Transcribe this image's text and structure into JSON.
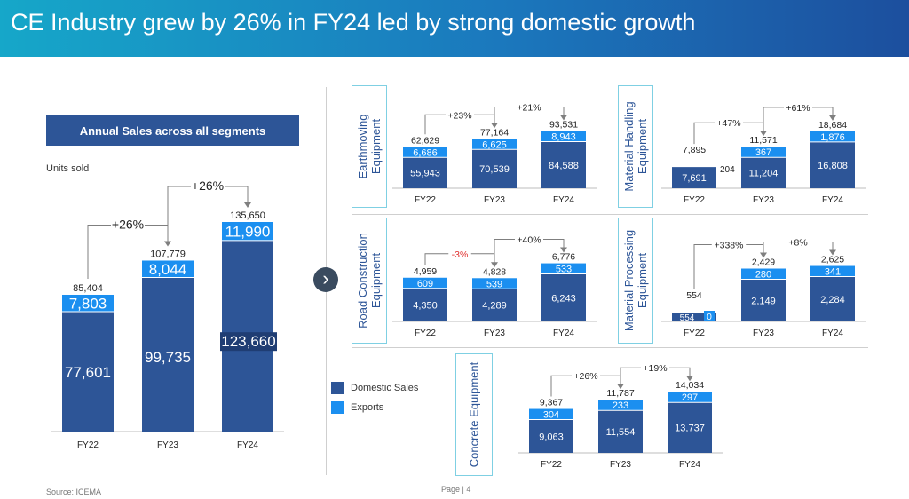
{
  "header": {
    "title": "CE Industry grew by 26% in FY24 led by strong domestic growth"
  },
  "left_panel": {
    "box_title": "Annual  Sales across all segments",
    "units": "Units sold"
  },
  "legend": {
    "domestic": "Domestic Sales",
    "exports": "Exports"
  },
  "footer": {
    "source": "Source: ICEMA",
    "page": "Page | 4"
  },
  "colors": {
    "domestic": "#2d5597",
    "exports": "#1b8ff0",
    "header_start": "#16a7c9",
    "header_end": "#1c4f9e",
    "negative": "#e0312f"
  },
  "segment_labels": {
    "earthmoving": "Earthmoving\nEquipment",
    "material_handling": "Material Handling\nEquipment",
    "road_construction": "Road Construction\nEquipment",
    "material_processing": "Material Processing\nEquipment",
    "concrete": "Concrete Equipment"
  },
  "chart_data": [
    {
      "id": "total",
      "type": "bar",
      "stacked": true,
      "title": "Annual  Sales across all segments",
      "ylabel": "Units sold",
      "categories": [
        "FY22",
        "FY23",
        "FY24"
      ],
      "series": [
        {
          "name": "Domestic Sales",
          "values": [
            77601,
            99735,
            123660
          ]
        },
        {
          "name": "Exports",
          "values": [
            7803,
            8044,
            11990
          ]
        }
      ],
      "totals": [
        "85,404",
        "107,779",
        "135,650"
      ],
      "growth": [
        "+26%",
        "+26%"
      ]
    },
    {
      "id": "earthmoving",
      "type": "bar",
      "stacked": true,
      "title": "Earthmoving Equipment",
      "categories": [
        "FY22",
        "FY23",
        "FY24"
      ],
      "series": [
        {
          "name": "Domestic Sales",
          "values": [
            55943,
            70539,
            84588
          ]
        },
        {
          "name": "Exports",
          "values": [
            6686,
            6625,
            8943
          ]
        }
      ],
      "totals": [
        "62,629",
        "77,164",
        "93,531"
      ],
      "growth": [
        "+23%",
        "+21%"
      ]
    },
    {
      "id": "material_handling",
      "type": "bar",
      "stacked": true,
      "title": "Material Handling Equipment",
      "categories": [
        "FY22",
        "FY23",
        "FY24"
      ],
      "series": [
        {
          "name": "Domestic Sales",
          "values": [
            7691,
            11204,
            16808
          ]
        },
        {
          "name": "Exports",
          "values": [
            204,
            367,
            1876
          ]
        }
      ],
      "totals": [
        "7,895",
        "11,571",
        "18,684"
      ],
      "growth": [
        "+47%",
        "+61%"
      ]
    },
    {
      "id": "road_construction",
      "type": "bar",
      "stacked": true,
      "title": "Road Construction Equipment",
      "categories": [
        "FY22",
        "FY23",
        "FY24"
      ],
      "series": [
        {
          "name": "Domestic Sales",
          "values": [
            4350,
            4289,
            6243
          ]
        },
        {
          "name": "Exports",
          "values": [
            609,
            539,
            533
          ]
        }
      ],
      "totals": [
        "4,959",
        "4,828",
        "6,776"
      ],
      "growth": [
        "-3%",
        "+40%"
      ]
    },
    {
      "id": "material_processing",
      "type": "bar",
      "stacked": true,
      "title": "Material Processing Equipment",
      "categories": [
        "FY22",
        "FY23",
        "FY24"
      ],
      "series": [
        {
          "name": "Domestic Sales",
          "values": [
            554,
            2149,
            2284
          ]
        },
        {
          "name": "Exports",
          "values": [
            0,
            280,
            341
          ]
        }
      ],
      "totals": [
        "554",
        "2,429",
        "2,625"
      ],
      "growth": [
        "+338%",
        "+8%"
      ]
    },
    {
      "id": "concrete",
      "type": "bar",
      "stacked": true,
      "title": "Concrete Equipment",
      "categories": [
        "FY22",
        "FY23",
        "FY24"
      ],
      "series": [
        {
          "name": "Domestic Sales",
          "values": [
            9063,
            11554,
            13737
          ]
        },
        {
          "name": "Exports",
          "values": [
            304,
            233,
            297
          ]
        }
      ],
      "totals": [
        "9,367",
        "11,787",
        "14,034"
      ],
      "growth": [
        "+26%",
        "+19%"
      ]
    }
  ]
}
